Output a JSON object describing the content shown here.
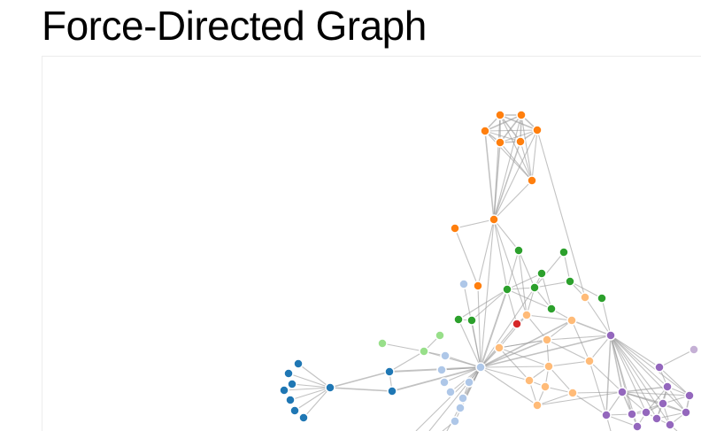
{
  "page": {
    "title": "Force-Directed Graph"
  },
  "graph": {
    "group_colors": {
      "1": "#1f77b4",
      "2": "#aec7e8",
      "3": "#ff7f0e",
      "4": "#ffbb78",
      "5": "#2ca02c",
      "6": "#98df8a",
      "7": "#d62728",
      "9": "#9467bd",
      "10": "#c5b0d5"
    }
  }
}
